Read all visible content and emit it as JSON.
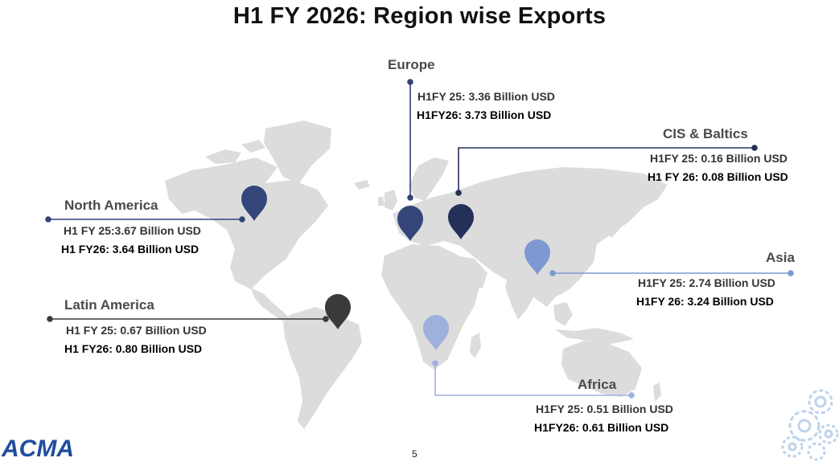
{
  "title": "H1 FY 2026: Region wise Exports",
  "page_number": "5",
  "logo": {
    "text": "ACMA",
    "color": "#1f4e9e"
  },
  "colors": {
    "land": "#dcdcdc",
    "north_america": "#34457a",
    "europe": "#34457a",
    "cis": "#243058",
    "asia": "#7e98d2",
    "latin_america": "#3a3a3a",
    "africa": "#9eb0dc"
  },
  "regions": {
    "north_america": {
      "name": "North America",
      "prev": "H1 FY 25:3.67 Billion USD",
      "curr": "H1 FY26: 3.64 Billion USD"
    },
    "europe": {
      "name": "Europe",
      "prev": "H1FY 25: 3.36 Billion USD",
      "curr": "H1FY26: 3.73 Billion USD"
    },
    "cis": {
      "name": "CIS & Baltics",
      "prev": "H1FY 25: 0.16 Billion USD",
      "curr": "H1 FY 26: 0.08 Billion USD"
    },
    "asia": {
      "name": "Asia",
      "prev": "H1FY 25: 2.74 Billion USD",
      "curr": "H1FY 26: 3.24 Billion USD"
    },
    "latin_america": {
      "name": "Latin America",
      "prev": "H1 FY 25: 0.67 Billion USD",
      "curr": "H1 FY26: 0.80 Billion USD"
    },
    "africa": {
      "name": "Africa",
      "prev": "H1FY 25: 0.51 Billion USD",
      "curr": "H1FY26: 0.61 Billion USD"
    }
  }
}
